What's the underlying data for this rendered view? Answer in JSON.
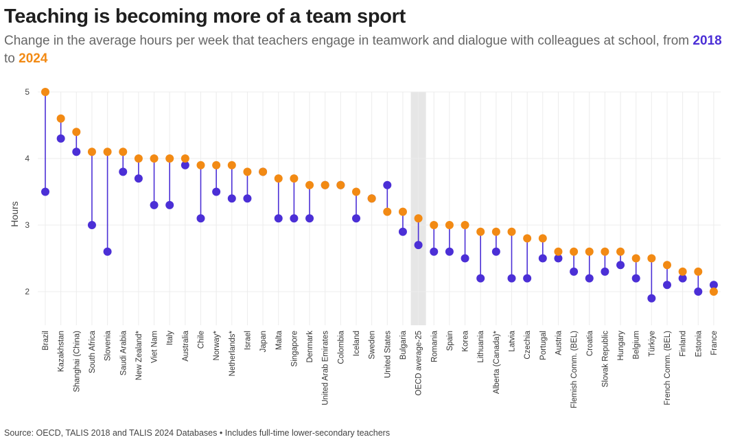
{
  "chart_data": {
    "type": "dumbbell",
    "title": "Teaching is becoming more of a team sport",
    "subtitle": {
      "text_before": "Change in the average hours per week that teachers engage in teamwork and dialogue with colleagues at school, from ",
      "year1": "2018",
      "text_middle": " to ",
      "year2": "2024"
    },
    "ylabel": "Hours",
    "ylim": [
      1.5,
      5.0
    ],
    "yticks": [
      2,
      3,
      4,
      5
    ],
    "highlight_category": "OECD average-25",
    "colors": {
      "2018": "#4b2fd6",
      "2024": "#f28a14",
      "highlight": "#e6e6e6",
      "grid": "#ececec"
    },
    "categories": [
      "Brazil",
      "Kazakhstan",
      "Shanghai (China)",
      "South Africa",
      "Slovenia",
      "Saudi Arabia",
      "New Zealand*",
      "Viet Nam",
      "Italy",
      "Australia",
      "Chile",
      "Norway*",
      "Netherlands*",
      "Israel",
      "Japan",
      "Malta",
      "Singapore",
      "Denmark",
      "United Arab Emirates",
      "Colombia",
      "Iceland",
      "Sweden",
      "United States",
      "Bulgaria",
      "OECD average-25",
      "Romania",
      "Spain",
      "Korea",
      "Lithuania",
      "Alberta (Canada)*",
      "Latvia",
      "Czechia",
      "Portugal",
      "Austria",
      "Flemish Comm. (BEL)",
      "Croatia",
      "Slovak Republic",
      "Hungary",
      "Belgium",
      "Türkiye",
      "French Comm. (BEL)",
      "Finland",
      "Estonia",
      "France"
    ],
    "series": [
      {
        "name": "2018",
        "values": [
          3.5,
          4.3,
          4.1,
          3.0,
          2.6,
          3.8,
          3.7,
          3.3,
          3.3,
          3.9,
          3.1,
          3.5,
          3.4,
          3.4,
          3.8,
          3.1,
          3.1,
          3.1,
          3.6,
          3.6,
          3.1,
          3.4,
          3.6,
          2.9,
          2.7,
          2.6,
          2.6,
          2.5,
          2.2,
          2.6,
          2.2,
          2.2,
          2.5,
          2.5,
          2.3,
          2.2,
          2.3,
          2.4,
          2.2,
          1.9,
          2.1,
          2.2,
          2.0,
          2.1
        ]
      },
      {
        "name": "2024",
        "values": [
          5.0,
          4.6,
          4.4,
          4.1,
          4.1,
          4.1,
          4.0,
          4.0,
          4.0,
          4.0,
          3.9,
          3.9,
          3.9,
          3.8,
          3.8,
          3.7,
          3.7,
          3.6,
          3.6,
          3.6,
          3.5,
          3.4,
          3.2,
          3.2,
          3.1,
          3.0,
          3.0,
          3.0,
          2.9,
          2.9,
          2.9,
          2.8,
          2.8,
          2.6,
          2.6,
          2.6,
          2.6,
          2.6,
          2.5,
          2.5,
          2.4,
          2.3,
          2.3,
          2.0
        ]
      }
    ]
  },
  "footer": {
    "source": "Source: OECD, TALIS 2018 and TALIS 2024 Databases • Includes full-time lower-secondary teachers"
  }
}
